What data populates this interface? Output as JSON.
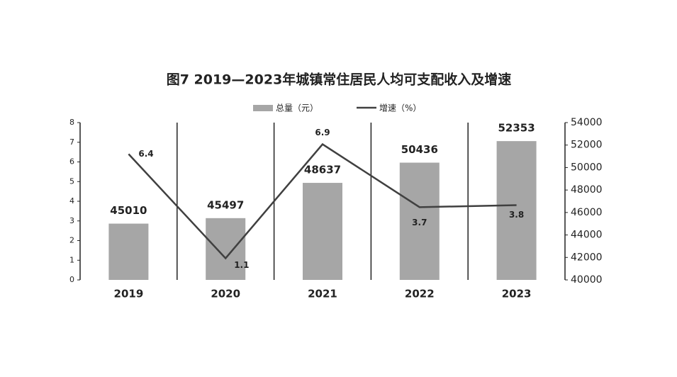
{
  "chart_data": {
    "type": "bar",
    "title": "图7  2019—2023年城镇常住居民人均可支配收入及增速",
    "categories": [
      "2019",
      "2020",
      "2021",
      "2022",
      "2023"
    ],
    "series": [
      {
        "name": "总量（元）",
        "type": "bar",
        "axis": "y2",
        "color": "#a6a6a6",
        "values": [
          45010,
          45497,
          48637,
          50436,
          52353
        ]
      },
      {
        "name": "增速（%）",
        "type": "line",
        "axis": "y",
        "color": "#404040",
        "values": [
          6.4,
          1.1,
          6.9,
          3.7,
          3.8
        ]
      }
    ],
    "ylim": [
      0,
      8
    ],
    "yticks": [
      0,
      1,
      2,
      3,
      4,
      5,
      6,
      7,
      8
    ],
    "y2lim": [
      40000,
      54000
    ],
    "y2ticks": [
      40000,
      42000,
      44000,
      46000,
      48000,
      50000,
      52000,
      54000
    ],
    "legend": "top"
  }
}
